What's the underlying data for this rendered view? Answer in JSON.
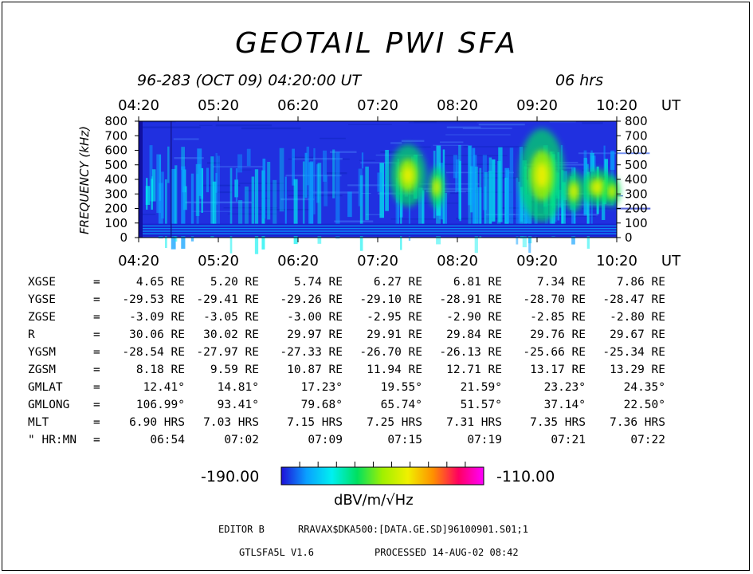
{
  "title": "GEOTAIL PWI SFA",
  "date_line": "96-283 (OCT 09) 04:20:00 UT",
  "duration": "06 hrs",
  "chart_data": {
    "type": "heatmap",
    "ylabel": "FREQUENCY (kHz)",
    "ylim": [
      0,
      800
    ],
    "y_ticks": [
      "800",
      "700",
      "600",
      "500",
      "400",
      "300",
      "200",
      "100",
      "0"
    ],
    "x_ticks": [
      "04:20",
      "05:20",
      "06:20",
      "07:20",
      "08:20",
      "09:20",
      "10:20"
    ],
    "x_unit": "UT",
    "colorbar": {
      "min": "-190.00",
      "max": "-110.00",
      "unit": "dBV/m/√Hz",
      "colors": [
        "#1e0fd8",
        "#0aa0ff",
        "#00f0f0",
        "#00e060",
        "#a0f000",
        "#f0f000",
        "#ff9000",
        "#ff0060",
        "#ff00ff"
      ]
    }
  },
  "ephemeris": {
    "rows": [
      {
        "label": "XGSE",
        "eq": "=",
        "values": [
          "4.65 RE",
          "5.20 RE",
          "5.74 RE",
          "6.27 RE",
          "6.81 RE",
          "7.34 RE",
          "7.86 RE"
        ]
      },
      {
        "label": "YGSE",
        "eq": "=",
        "values": [
          "-29.53 RE",
          "-29.41 RE",
          "-29.26 RE",
          "-29.10 RE",
          "-28.91 RE",
          "-28.70 RE",
          "-28.47 RE"
        ]
      },
      {
        "label": "ZGSE",
        "eq": "=",
        "values": [
          "-3.09 RE",
          "-3.05 RE",
          "-3.00 RE",
          "-2.95 RE",
          "-2.90 RE",
          "-2.85 RE",
          "-2.80 RE"
        ]
      },
      {
        "label": "R",
        "eq": "=",
        "values": [
          "30.06 RE",
          "30.02 RE",
          "29.97 RE",
          "29.91 RE",
          "29.84 RE",
          "29.76 RE",
          "29.67 RE"
        ]
      },
      {
        "label": "YGSM",
        "eq": "=",
        "values": [
          "-28.54 RE",
          "-27.97 RE",
          "-27.33 RE",
          "-26.70 RE",
          "-26.13 RE",
          "-25.66 RE",
          "-25.34 RE"
        ]
      },
      {
        "label": "ZGSM",
        "eq": "=",
        "values": [
          "8.18 RE",
          "9.59 RE",
          "10.87 RE",
          "11.94 RE",
          "12.71 RE",
          "13.17 RE",
          "13.29 RE"
        ]
      },
      {
        "label": "GMLAT",
        "eq": "=",
        "values": [
          "12.41°",
          "14.81°",
          "17.23°",
          "19.55°",
          "21.59°",
          "23.23°",
          "24.35°"
        ]
      },
      {
        "label": "GMLONG",
        "eq": "=",
        "values": [
          "106.99°",
          "93.41°",
          "79.68°",
          "65.74°",
          "51.57°",
          "37.14°",
          "22.50°"
        ]
      },
      {
        "label": "MLT",
        "eq": "=",
        "values": [
          "6.90 HRS",
          "7.03 HRS",
          "7.15 HRS",
          "7.25 HRS",
          "7.31 HRS",
          "7.35 HRS",
          "7.36 HRS"
        ]
      },
      {
        "label": "\" HR:MN",
        "eq": "=",
        "values": [
          "06:54",
          "07:02",
          "07:09",
          "07:15",
          "07:19",
          "07:21",
          "07:22"
        ]
      }
    ]
  },
  "footer": {
    "editor": "EDITOR B",
    "path": "RRAVAX$DKA500:[DATA.GE.SD]96100901.S01;1",
    "version": "GTLSFA5L V1.6",
    "processed": "PROCESSED 14-AUG-02 08:42"
  }
}
